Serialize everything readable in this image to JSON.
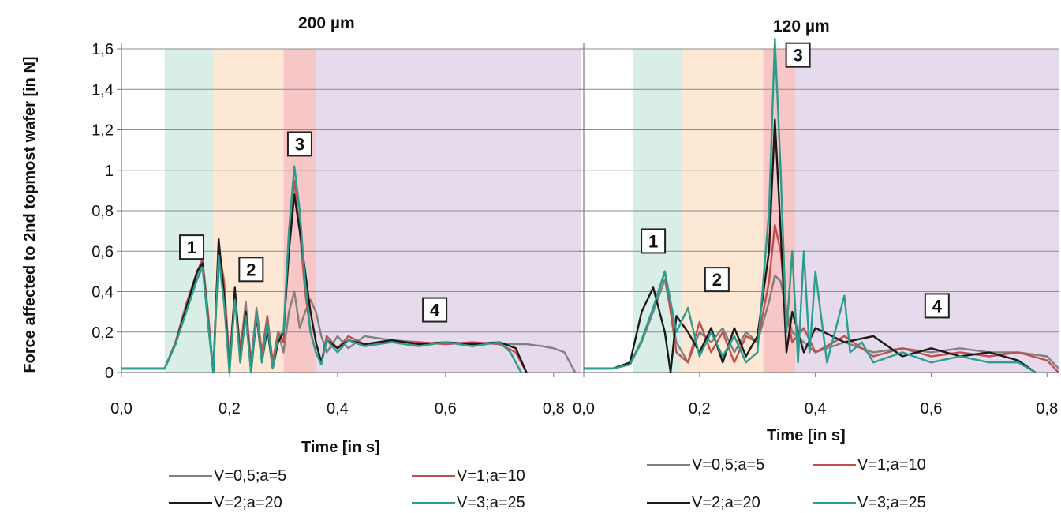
{
  "chart_data": [
    {
      "type": "line",
      "title": "200 µm",
      "xlabel": "Time [in s]",
      "ylabel": "Force affected to 2nd topmost wafer [in N]",
      "xlim": [
        0,
        0.85
      ],
      "ylim": [
        0,
        1.6
      ],
      "xticks": [
        "0,0",
        "0,2",
        "0,4",
        "0,6",
        "0,8"
      ],
      "yticks": [
        "0",
        "0,2",
        "0,4",
        "0,6",
        "0,8",
        "1",
        "1,2",
        "1,4",
        "1,6"
      ],
      "xtick_values": [
        0,
        0.2,
        0.4,
        0.6,
        0.8
      ],
      "ytick_values": [
        0,
        0.2,
        0.4,
        0.6,
        0.8,
        1.0,
        1.2,
        1.4,
        1.6
      ],
      "regions": [
        {
          "label": "1",
          "x0": 0.08,
          "x1": 0.17,
          "color": "#d9eee6",
          "label_x": 0.13,
          "label_y": 0.62
        },
        {
          "label": "2",
          "x0": 0.17,
          "x1": 0.3,
          "color": "#fce8d4",
          "label_x": 0.24,
          "label_y": 0.51
        },
        {
          "label": "3",
          "x0": 0.3,
          "x1": 0.36,
          "color": "#f7c6c6",
          "label_x": 0.33,
          "label_y": 1.13
        },
        {
          "label": "4",
          "x0": 0.36,
          "x1": 0.85,
          "color": "#e6daed",
          "label_x": 0.58,
          "label_y": 0.31
        }
      ],
      "series": [
        {
          "name": "V=0,5;a=5",
          "color": "#808080",
          "x": [
            0,
            0.05,
            0.08,
            0.1,
            0.12,
            0.14,
            0.15,
            0.16,
            0.17,
            0.18,
            0.19,
            0.2,
            0.21,
            0.22,
            0.23,
            0.24,
            0.25,
            0.26,
            0.27,
            0.28,
            0.29,
            0.3,
            0.31,
            0.32,
            0.33,
            0.34,
            0.35,
            0.36,
            0.37,
            0.38,
            0.4,
            0.42,
            0.45,
            0.5,
            0.55,
            0.6,
            0.65,
            0.7,
            0.75,
            0.78,
            0.8,
            0.82,
            0.83,
            0.84
          ],
          "y": [
            0.02,
            0.02,
            0.02,
            0.15,
            0.32,
            0.48,
            0.55,
            0.3,
            0.0,
            0.62,
            0.4,
            0.05,
            0.4,
            0.1,
            0.35,
            0.05,
            0.32,
            0.1,
            0.25,
            0.05,
            0.2,
            0.1,
            0.3,
            0.4,
            0.22,
            0.3,
            0.36,
            0.3,
            0.18,
            0.1,
            0.18,
            0.12,
            0.18,
            0.16,
            0.15,
            0.14,
            0.15,
            0.14,
            0.14,
            0.13,
            0.12,
            0.1,
            0.05,
            0.0
          ]
        },
        {
          "name": "V=1;a=10",
          "color": "#c0504d",
          "x": [
            0,
            0.05,
            0.08,
            0.1,
            0.12,
            0.14,
            0.15,
            0.16,
            0.17,
            0.18,
            0.19,
            0.2,
            0.21,
            0.22,
            0.23,
            0.24,
            0.25,
            0.26,
            0.27,
            0.28,
            0.29,
            0.3,
            0.31,
            0.32,
            0.33,
            0.34,
            0.35,
            0.36,
            0.37,
            0.38,
            0.4,
            0.42,
            0.45,
            0.5,
            0.55,
            0.6,
            0.65,
            0.7,
            0.73,
            0.75
          ],
          "y": [
            0.02,
            0.02,
            0.02,
            0.15,
            0.34,
            0.5,
            0.56,
            0.3,
            0.0,
            0.62,
            0.45,
            0.05,
            0.38,
            0.12,
            0.3,
            0.05,
            0.3,
            0.1,
            0.28,
            0.05,
            0.2,
            0.15,
            0.7,
            0.95,
            0.7,
            0.4,
            0.2,
            0.1,
            0.05,
            0.18,
            0.12,
            0.18,
            0.14,
            0.15,
            0.15,
            0.14,
            0.15,
            0.14,
            0.1,
            0.0
          ]
        },
        {
          "name": "V=2;a=20",
          "color": "#1a1a1a",
          "x": [
            0,
            0.05,
            0.08,
            0.1,
            0.12,
            0.14,
            0.15,
            0.16,
            0.17,
            0.18,
            0.19,
            0.2,
            0.21,
            0.22,
            0.23,
            0.24,
            0.25,
            0.26,
            0.27,
            0.28,
            0.29,
            0.3,
            0.31,
            0.32,
            0.33,
            0.34,
            0.35,
            0.36,
            0.37,
            0.38,
            0.4,
            0.42,
            0.45,
            0.5,
            0.55,
            0.6,
            0.65,
            0.7,
            0.73,
            0.75
          ],
          "y": [
            0.02,
            0.02,
            0.02,
            0.14,
            0.32,
            0.5,
            0.54,
            0.25,
            0.0,
            0.66,
            0.38,
            0.0,
            0.42,
            0.05,
            0.3,
            0.0,
            0.28,
            0.05,
            0.22,
            0.02,
            0.15,
            0.2,
            0.6,
            0.88,
            0.7,
            0.5,
            0.3,
            0.15,
            0.05,
            0.16,
            0.12,
            0.16,
            0.14,
            0.16,
            0.14,
            0.15,
            0.14,
            0.15,
            0.12,
            0.0
          ]
        },
        {
          "name": "V=3;a=25",
          "color": "#2a9d8f",
          "x": [
            0,
            0.05,
            0.08,
            0.1,
            0.12,
            0.14,
            0.15,
            0.16,
            0.17,
            0.18,
            0.19,
            0.2,
            0.21,
            0.22,
            0.23,
            0.24,
            0.25,
            0.26,
            0.27,
            0.28,
            0.29,
            0.3,
            0.31,
            0.32,
            0.33,
            0.34,
            0.35,
            0.36,
            0.37,
            0.38,
            0.4,
            0.42,
            0.45,
            0.5,
            0.55,
            0.6,
            0.65,
            0.7,
            0.72,
            0.74
          ],
          "y": [
            0.02,
            0.02,
            0.02,
            0.14,
            0.3,
            0.46,
            0.52,
            0.25,
            0.0,
            0.58,
            0.34,
            0.0,
            0.36,
            0.05,
            0.28,
            0.0,
            0.3,
            0.05,
            0.25,
            0.02,
            0.18,
            0.2,
            0.7,
            1.02,
            0.8,
            0.45,
            0.2,
            0.1,
            0.04,
            0.16,
            0.1,
            0.16,
            0.13,
            0.15,
            0.13,
            0.15,
            0.13,
            0.15,
            0.1,
            0.0
          ]
        }
      ]
    },
    {
      "type": "line",
      "title": "120 µm",
      "xlabel": "Time [in s]",
      "ylabel": "",
      "xlim": [
        0,
        0.82
      ],
      "ylim": [
        0,
        1.6
      ],
      "xticks": [
        "0,0",
        "0,2",
        "0,4",
        "0,6",
        "0,8"
      ],
      "xtick_values": [
        0,
        0.2,
        0.4,
        0.6,
        0.8
      ],
      "ytick_values": [
        0,
        0.2,
        0.4,
        0.6,
        0.8,
        1.0,
        1.2,
        1.4,
        1.6
      ],
      "regions": [
        {
          "label": "1",
          "x0": 0.085,
          "x1": 0.17,
          "color": "#d9eee6",
          "label_x": 0.12,
          "label_y": 0.65
        },
        {
          "label": "2",
          "x0": 0.17,
          "x1": 0.31,
          "color": "#fce8d4",
          "label_x": 0.23,
          "label_y": 0.46
        },
        {
          "label": "3",
          "x0": 0.31,
          "x1": 0.365,
          "color": "#f7c6c6",
          "label_x": 0.37,
          "label_y": 1.57
        },
        {
          "label": "4",
          "x0": 0.365,
          "x1": 0.82,
          "color": "#e6daed",
          "label_x": 0.61,
          "label_y": 0.33
        }
      ],
      "series": [
        {
          "name": "V=0,5;a=5",
          "color": "#808080",
          "x": [
            0,
            0.05,
            0.08,
            0.1,
            0.12,
            0.14,
            0.16,
            0.18,
            0.2,
            0.22,
            0.24,
            0.26,
            0.28,
            0.3,
            0.32,
            0.33,
            0.34,
            0.35,
            0.36,
            0.38,
            0.4,
            0.45,
            0.5,
            0.55,
            0.6,
            0.65,
            0.7,
            0.75,
            0.8,
            0.82
          ],
          "y": [
            0.02,
            0.02,
            0.04,
            0.15,
            0.3,
            0.46,
            0.15,
            0.05,
            0.2,
            0.15,
            0.22,
            0.1,
            0.2,
            0.15,
            0.35,
            0.48,
            0.45,
            0.3,
            0.2,
            0.15,
            0.1,
            0.15,
            0.1,
            0.12,
            0.1,
            0.12,
            0.1,
            0.1,
            0.08,
            0.02
          ]
        },
        {
          "name": "V=1;a=10",
          "color": "#c0504d",
          "x": [
            0,
            0.05,
            0.08,
            0.1,
            0.12,
            0.14,
            0.16,
            0.18,
            0.2,
            0.22,
            0.24,
            0.26,
            0.28,
            0.3,
            0.32,
            0.33,
            0.34,
            0.35,
            0.36,
            0.38,
            0.4,
            0.45,
            0.5,
            0.55,
            0.6,
            0.65,
            0.7,
            0.75,
            0.8,
            0.82
          ],
          "y": [
            0.02,
            0.02,
            0.04,
            0.16,
            0.32,
            0.5,
            0.1,
            0.05,
            0.25,
            0.1,
            0.2,
            0.05,
            0.18,
            0.15,
            0.45,
            0.73,
            0.6,
            0.3,
            0.15,
            0.22,
            0.1,
            0.18,
            0.08,
            0.12,
            0.08,
            0.1,
            0.08,
            0.1,
            0.06,
            0.0
          ]
        },
        {
          "name": "V=2;a=20",
          "color": "#1a1a1a",
          "x": [
            0,
            0.05,
            0.08,
            0.1,
            0.12,
            0.14,
            0.15,
            0.16,
            0.18,
            0.2,
            0.22,
            0.24,
            0.26,
            0.28,
            0.3,
            0.32,
            0.33,
            0.34,
            0.35,
            0.36,
            0.38,
            0.4,
            0.45,
            0.5,
            0.55,
            0.6,
            0.65,
            0.7,
            0.75,
            0.78
          ],
          "y": [
            0.02,
            0.02,
            0.05,
            0.3,
            0.42,
            0.2,
            0.0,
            0.28,
            0.2,
            0.1,
            0.22,
            0.05,
            0.22,
            0.08,
            0.18,
            0.6,
            1.25,
            0.7,
            0.1,
            0.3,
            0.1,
            0.22,
            0.15,
            0.18,
            0.08,
            0.12,
            0.08,
            0.1,
            0.06,
            0.0
          ]
        },
        {
          "name": "V=3;a=25",
          "color": "#2a9d8f",
          "x": [
            0,
            0.05,
            0.08,
            0.1,
            0.12,
            0.14,
            0.16,
            0.18,
            0.2,
            0.22,
            0.24,
            0.26,
            0.28,
            0.3,
            0.32,
            0.33,
            0.34,
            0.35,
            0.36,
            0.37,
            0.38,
            0.39,
            0.4,
            0.42,
            0.45,
            0.46,
            0.48,
            0.5,
            0.55,
            0.6,
            0.65,
            0.7,
            0.75,
            0.78
          ],
          "y": [
            0.02,
            0.02,
            0.04,
            0.16,
            0.32,
            0.5,
            0.2,
            0.32,
            0.08,
            0.2,
            0.08,
            0.18,
            0.05,
            0.1,
            0.8,
            1.65,
            1.0,
            0.2,
            0.6,
            0.05,
            0.6,
            0.1,
            0.5,
            0.05,
            0.38,
            0.1,
            0.15,
            0.05,
            0.1,
            0.05,
            0.08,
            0.05,
            0.05,
            0.0
          ]
        }
      ]
    }
  ],
  "legend": {
    "left": [
      {
        "label": "V=0,5;a=5",
        "color": "#808080"
      },
      {
        "label": "V=1;a=10",
        "color": "#c0504d"
      },
      {
        "label": "V=2;a=20",
        "color": "#1a1a1a"
      },
      {
        "label": "V=3;a=25",
        "color": "#2a9d8f"
      }
    ],
    "right": [
      {
        "label": "V=0,5;a=5",
        "color": "#808080"
      },
      {
        "label": "V=1;a=10",
        "color": "#c0504d"
      },
      {
        "label": "V=2;a=20",
        "color": "#1a1a1a"
      },
      {
        "label": "V=3;a=25",
        "color": "#2a9d8f"
      }
    ]
  }
}
